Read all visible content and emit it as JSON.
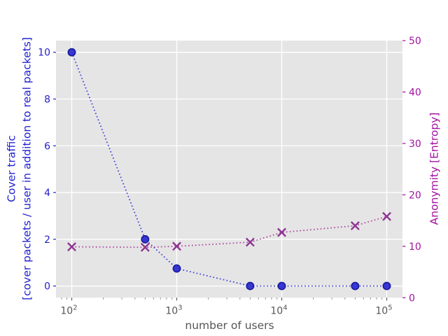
{
  "chart_data": {
    "type": "line",
    "xscale": "log",
    "xlabel": "number of users",
    "x": [
      100,
      500,
      1000,
      5000,
      10000,
      50000,
      100000
    ],
    "x_tick_exponents": [
      2,
      3,
      4,
      5
    ],
    "xlim_log10": [
      1.85,
      5.15
    ],
    "grid": true,
    "figure_background": "#ffffff",
    "plot_background": "#e5e5e5",
    "grid_color": "#ffffff",
    "x_axis": {
      "tick_color": "#555555",
      "minor_tick_color": "#777777",
      "label_color": "#555555"
    },
    "left_axis": {
      "label_lines": [
        "Cover traffic",
        "[cover packets / user in addition to real packets]"
      ],
      "ticks": [
        0,
        2,
        4,
        6,
        8,
        10
      ],
      "range": [
        -0.5,
        10.5
      ],
      "color": "#2323cf"
    },
    "right_axis": {
      "label": "Anonymity [Entropy]",
      "ticks": [
        0,
        10,
        20,
        30,
        40,
        50
      ],
      "range": [
        0,
        50
      ],
      "color": "#a312a3"
    },
    "series": [
      {
        "name": "cover-traffic",
        "axis": "left",
        "marker": "circle",
        "linestyle": "dotted",
        "line_color": "#4646d6",
        "marker_fill": "#3737d4",
        "marker_edge": "#1a1a9e",
        "values": [
          10,
          2,
          0.75,
          0,
          0,
          0,
          0
        ]
      },
      {
        "name": "anonymity-entropy",
        "axis": "right",
        "marker": "x",
        "linestyle": "dotted",
        "line_color": "#af4da4",
        "marker_edge": "#8d3590",
        "values": [
          9.9,
          9.8,
          10.0,
          10.8,
          12.7,
          14.0,
          15.8
        ]
      }
    ]
  }
}
